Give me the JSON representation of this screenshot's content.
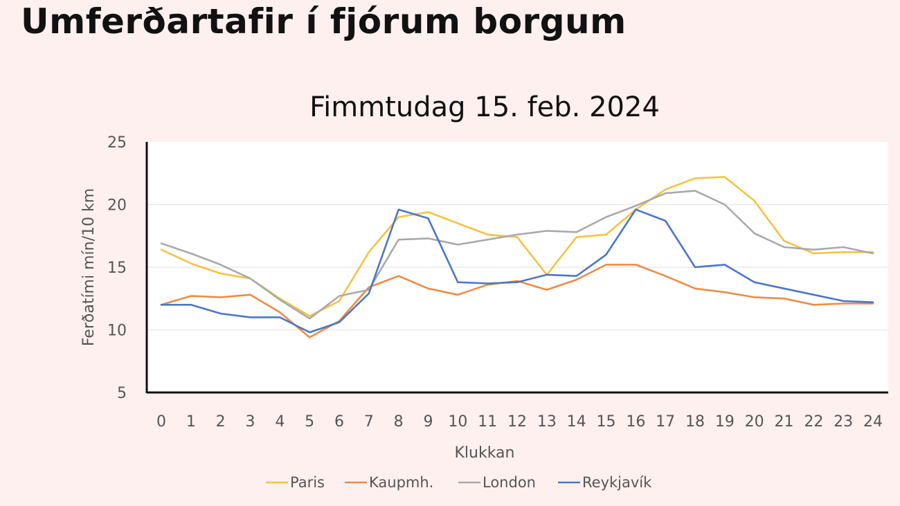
{
  "page": {
    "title": "Umferðartafir í fjórum borgum"
  },
  "chart_data": {
    "type": "line",
    "title": "Fimmtudag 15. feb. 2024",
    "xlabel": "Klukkan",
    "ylabel": "Ferðatími mín/10 km",
    "ylim": [
      5,
      25
    ],
    "yticks": [
      5,
      10,
      15,
      20,
      25
    ],
    "x": [
      0,
      1,
      2,
      3,
      4,
      5,
      6,
      7,
      8,
      9,
      10,
      11,
      12,
      13,
      14,
      15,
      16,
      17,
      18,
      19,
      20,
      21,
      22,
      23,
      24
    ],
    "grid": "horizontal",
    "legend_position": "bottom",
    "series": [
      {
        "name": "Paris",
        "color": "#f5c242",
        "values": [
          16.4,
          15.3,
          14.5,
          14.1,
          12.5,
          11.1,
          12.3,
          16.2,
          19.0,
          19.4,
          18.5,
          17.6,
          17.4,
          14.4,
          17.4,
          17.6,
          19.6,
          21.2,
          22.1,
          22.2,
          20.3,
          17.1,
          16.1,
          16.2,
          16.2
        ]
      },
      {
        "name": "Kaupmh.",
        "color": "#ee8a44",
        "values": [
          12.0,
          12.7,
          12.6,
          12.8,
          11.4,
          9.4,
          10.7,
          13.4,
          14.3,
          13.3,
          12.8,
          13.6,
          13.9,
          13.2,
          14.0,
          15.2,
          15.2,
          14.3,
          13.3,
          13.0,
          12.6,
          12.5,
          12.0,
          12.1,
          12.1
        ]
      },
      {
        "name": "London",
        "color": "#a9a9a9",
        "values": [
          16.9,
          16.1,
          15.2,
          14.1,
          12.4,
          10.9,
          12.7,
          13.2,
          17.2,
          17.3,
          16.8,
          17.2,
          17.6,
          17.9,
          17.8,
          19.0,
          19.9,
          20.9,
          21.1,
          20.0,
          17.7,
          16.6,
          16.4,
          16.6,
          16.1
        ]
      },
      {
        "name": "Reykjavík",
        "color": "#4a76c8",
        "values": [
          12.0,
          12.0,
          11.3,
          11.0,
          11.0,
          9.8,
          10.6,
          12.9,
          19.6,
          18.9,
          13.8,
          13.7,
          13.8,
          14.4,
          14.3,
          16.0,
          19.6,
          18.7,
          15.0,
          15.2,
          13.8,
          13.3,
          12.8,
          12.3,
          12.2
        ]
      }
    ]
  }
}
